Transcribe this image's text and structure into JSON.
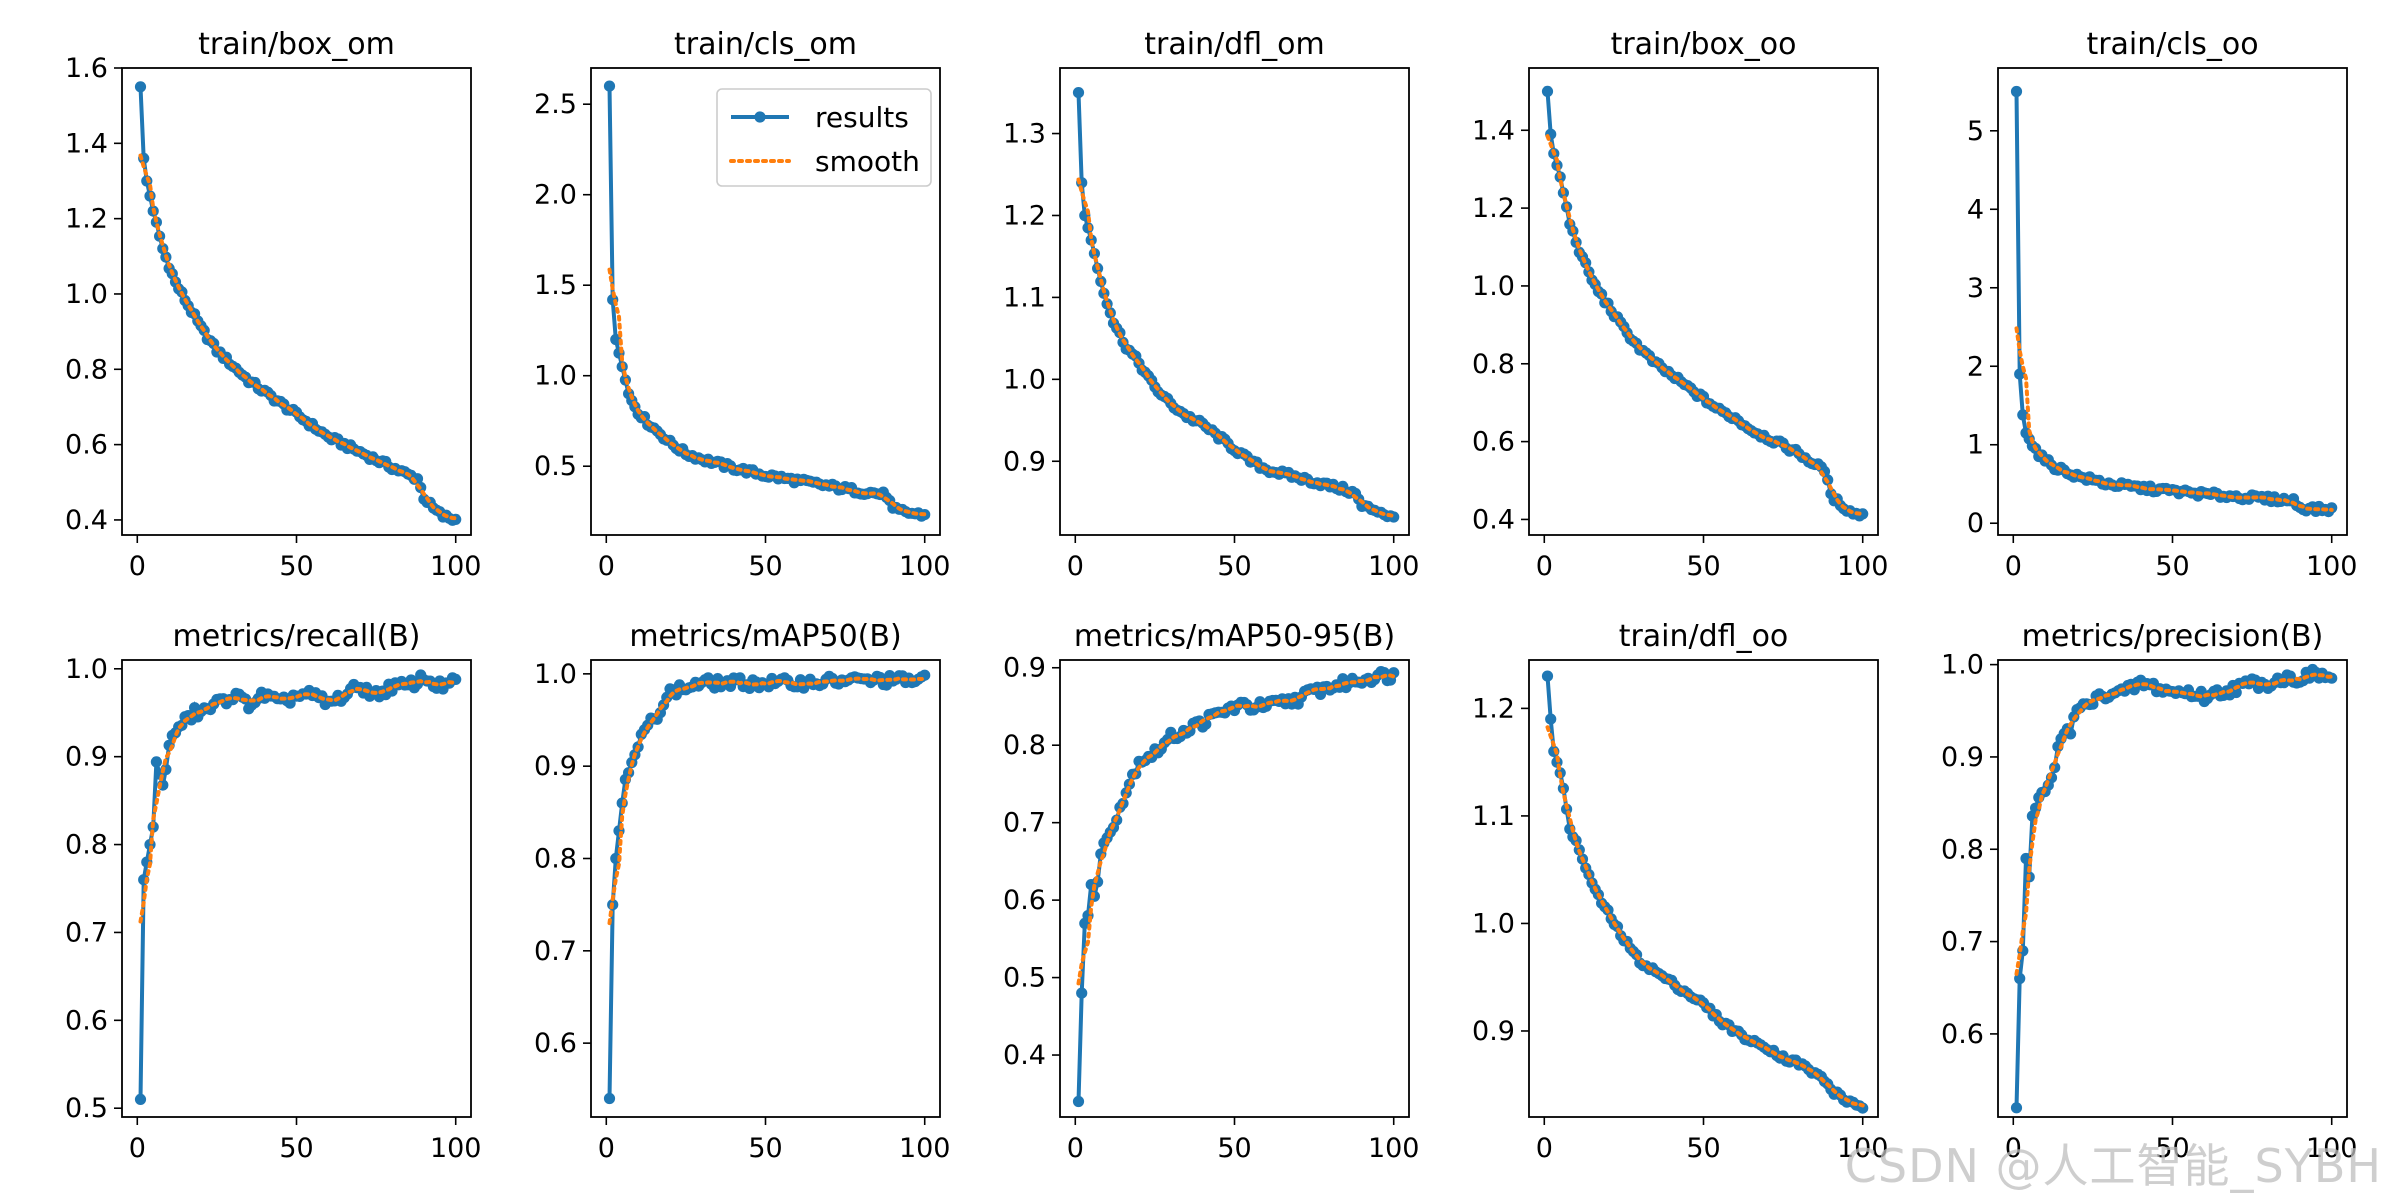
{
  "figure": {
    "watermark": "CSDN @人工智能_SYBH",
    "legend": {
      "results_label": "results",
      "smooth_label": "smooth"
    },
    "colors": {
      "results": "#1f77b4",
      "smooth": "#ff7f0e"
    }
  },
  "chart_data": [
    {
      "type": "line",
      "title": "train/box_om",
      "xlim": [
        0,
        100
      ],
      "ylim": [
        0.36,
        1.6
      ],
      "xticks": [
        0,
        50,
        100
      ],
      "yticks": [
        0.4,
        0.6,
        0.8,
        1.0,
        1.2,
        1.4,
        1.6
      ],
      "ytick_labels": [
        "0.4",
        "0.6",
        "0.8",
        "1.0",
        "1.2",
        "1.4",
        "1.6"
      ],
      "decay": "monotonic",
      "x": [
        1,
        2,
        3,
        5,
        8,
        12,
        16,
        20,
        25,
        30,
        35,
        40,
        45,
        50,
        55,
        60,
        65,
        70,
        75,
        80,
        85,
        88,
        90,
        93,
        96,
        100
      ],
      "results": [
        1.55,
        1.36,
        1.3,
        1.22,
        1.12,
        1.03,
        0.97,
        0.91,
        0.85,
        0.81,
        0.77,
        0.74,
        0.71,
        0.68,
        0.65,
        0.62,
        0.6,
        0.58,
        0.56,
        0.54,
        0.52,
        0.51,
        0.46,
        0.43,
        0.41,
        0.4
      ]
    },
    {
      "type": "line",
      "title": "train/cls_om",
      "xlim": [
        0,
        100
      ],
      "ylim": [
        0.12,
        2.7
      ],
      "xticks": [
        0,
        50,
        100
      ],
      "yticks": [
        0.5,
        1.0,
        1.5,
        2.0,
        2.5
      ],
      "ytick_labels": [
        "0.5",
        "1.0",
        "1.5",
        "2.0",
        "2.5"
      ],
      "decay": "monotonic",
      "legend": "top-right",
      "x": [
        1,
        2,
        3,
        5,
        7,
        10,
        13,
        17,
        20,
        25,
        30,
        40,
        50,
        60,
        70,
        80,
        85,
        88,
        90,
        93,
        96,
        100
      ],
      "results": [
        2.6,
        1.42,
        1.2,
        1.05,
        0.9,
        0.8,
        0.74,
        0.68,
        0.63,
        0.57,
        0.54,
        0.49,
        0.45,
        0.42,
        0.39,
        0.36,
        0.35,
        0.34,
        0.26,
        0.25,
        0.24,
        0.23
      ]
    },
    {
      "type": "line",
      "title": "train/dfl_om",
      "xlim": [
        0,
        100
      ],
      "ylim": [
        0.81,
        1.38
      ],
      "xticks": [
        0,
        50,
        100
      ],
      "yticks": [
        0.9,
        1.0,
        1.1,
        1.2,
        1.3
      ],
      "ytick_labels": [
        "0.9",
        "1.0",
        "1.1",
        "1.2",
        "1.3"
      ],
      "decay": "monotonic",
      "x": [
        1,
        2,
        3,
        5,
        8,
        12,
        16,
        20,
        25,
        30,
        35,
        40,
        45,
        50,
        55,
        60,
        65,
        70,
        75,
        80,
        85,
        88,
        90,
        95,
        100
      ],
      "results": [
        1.35,
        1.24,
        1.2,
        1.17,
        1.12,
        1.07,
        1.04,
        1.02,
        0.99,
        0.97,
        0.955,
        0.945,
        0.93,
        0.915,
        0.9,
        0.89,
        0.885,
        0.88,
        0.875,
        0.87,
        0.865,
        0.86,
        0.845,
        0.84,
        0.83
      ]
    },
    {
      "type": "line",
      "title": "train/box_oo",
      "xlim": [
        0,
        100
      ],
      "ylim": [
        0.36,
        1.56
      ],
      "xticks": [
        0,
        50,
        100
      ],
      "yticks": [
        0.4,
        0.6,
        0.8,
        1.0,
        1.2,
        1.4
      ],
      "ytick_labels": [
        "0.4",
        "0.6",
        "0.8",
        "1.0",
        "1.2",
        "1.4"
      ],
      "decay": "monotonic",
      "x": [
        1,
        2,
        3,
        5,
        8,
        12,
        16,
        20,
        25,
        30,
        35,
        40,
        45,
        50,
        55,
        60,
        65,
        70,
        75,
        80,
        85,
        88,
        90,
        93,
        96,
        100
      ],
      "results": [
        1.5,
        1.39,
        1.34,
        1.28,
        1.16,
        1.07,
        1.0,
        0.95,
        0.89,
        0.84,
        0.8,
        0.77,
        0.74,
        0.71,
        0.68,
        0.66,
        0.63,
        0.61,
        0.59,
        0.57,
        0.54,
        0.53,
        0.46,
        0.44,
        0.42,
        0.41
      ]
    },
    {
      "type": "line",
      "title": "train/cls_oo",
      "xlim": [
        0,
        100
      ],
      "ylim": [
        -0.15,
        5.8
      ],
      "xticks": [
        0,
        50,
        100
      ],
      "yticks": [
        0,
        1,
        2,
        3,
        4,
        5
      ],
      "ytick_labels": [
        "0",
        "1",
        "2",
        "3",
        "4",
        "5"
      ],
      "decay": "monotonic",
      "x": [
        1,
        2,
        3,
        4,
        6,
        8,
        10,
        13,
        17,
        20,
        25,
        30,
        40,
        50,
        60,
        70,
        80,
        85,
        88,
        90,
        95,
        100
      ],
      "results": [
        5.5,
        1.9,
        1.38,
        1.15,
        1.0,
        0.88,
        0.8,
        0.72,
        0.65,
        0.6,
        0.55,
        0.5,
        0.45,
        0.41,
        0.37,
        0.34,
        0.31,
        0.3,
        0.29,
        0.2,
        0.18,
        0.17
      ]
    },
    {
      "type": "line",
      "title": "metrics/recall(B)",
      "xlim": [
        0,
        100
      ],
      "ylim": [
        0.49,
        1.01
      ],
      "xticks": [
        0,
        50,
        100
      ],
      "yticks": [
        0.5,
        0.6,
        0.7,
        0.8,
        0.9,
        1.0
      ],
      "ytick_labels": [
        "0.5",
        "0.6",
        "0.7",
        "0.8",
        "0.9",
        "1.0"
      ],
      "decay": "rise",
      "x": [
        1,
        2,
        3,
        4,
        5,
        6,
        8,
        10,
        12,
        15,
        18,
        20,
        25,
        30,
        35,
        40,
        45,
        50,
        55,
        60,
        65,
        70,
        75,
        80,
        85,
        90,
        95,
        100
      ],
      "results": [
        0.51,
        0.76,
        0.78,
        0.8,
        0.82,
        0.89,
        0.87,
        0.91,
        0.93,
        0.94,
        0.95,
        0.95,
        0.96,
        0.97,
        0.96,
        0.97,
        0.96,
        0.97,
        0.97,
        0.96,
        0.97,
        0.98,
        0.97,
        0.98,
        0.98,
        0.99,
        0.98,
        0.985
      ]
    },
    {
      "type": "line",
      "title": "metrics/mAP50(B)",
      "xlim": [
        0,
        100
      ],
      "ylim": [
        0.52,
        1.015
      ],
      "xticks": [
        0,
        50,
        100
      ],
      "yticks": [
        0.6,
        0.7,
        0.8,
        0.9,
        1.0
      ],
      "ytick_labels": [
        "0.6",
        "0.7",
        "0.8",
        "0.9",
        "1.0"
      ],
      "decay": "rise",
      "x": [
        1,
        2,
        3,
        4,
        5,
        6,
        8,
        10,
        12,
        15,
        18,
        20,
        25,
        30,
        40,
        50,
        60,
        70,
        80,
        90,
        100
      ],
      "results": [
        0.54,
        0.75,
        0.8,
        0.83,
        0.86,
        0.89,
        0.9,
        0.92,
        0.94,
        0.95,
        0.97,
        0.98,
        0.985,
        0.99,
        0.99,
        0.99,
        0.99,
        0.992,
        0.993,
        0.993,
        0.993
      ]
    },
    {
      "type": "line",
      "title": "metrics/mAP50-95(B)",
      "xlim": [
        0,
        100
      ],
      "ylim": [
        0.32,
        0.91
      ],
      "xticks": [
        0,
        50,
        100
      ],
      "yticks": [
        0.4,
        0.5,
        0.6,
        0.7,
        0.8,
        0.9
      ],
      "ytick_labels": [
        "0.4",
        "0.5",
        "0.6",
        "0.7",
        "0.8",
        "0.9"
      ],
      "decay": "rise",
      "x": [
        1,
        2,
        3,
        4,
        5,
        6,
        8,
        10,
        12,
        15,
        18,
        20,
        25,
        30,
        35,
        40,
        45,
        50,
        55,
        60,
        65,
        70,
        75,
        80,
        85,
        90,
        95,
        100
      ],
      "results": [
        0.34,
        0.48,
        0.57,
        0.58,
        0.62,
        0.6,
        0.66,
        0.68,
        0.7,
        0.73,
        0.76,
        0.78,
        0.79,
        0.81,
        0.82,
        0.83,
        0.84,
        0.85,
        0.85,
        0.85,
        0.855,
        0.86,
        0.87,
        0.875,
        0.88,
        0.885,
        0.89,
        0.89
      ]
    },
    {
      "type": "line",
      "title": "train/dfl_oo",
      "xlim": [
        0,
        100
      ],
      "ylim": [
        0.82,
        1.245
      ],
      "xticks": [
        0,
        50,
        100
      ],
      "yticks": [
        0.9,
        1.0,
        1.1,
        1.2
      ],
      "ytick_labels": [
        "0.9",
        "1.0",
        "1.1",
        "1.2"
      ],
      "decay": "monotonic",
      "x": [
        1,
        2,
        3,
        5,
        8,
        12,
        16,
        20,
        25,
        30,
        35,
        40,
        45,
        50,
        55,
        60,
        65,
        70,
        75,
        80,
        85,
        88,
        90,
        95,
        100
      ],
      "results": [
        1.23,
        1.19,
        1.16,
        1.14,
        1.09,
        1.06,
        1.03,
        1.01,
        0.985,
        0.965,
        0.955,
        0.945,
        0.935,
        0.925,
        0.91,
        0.9,
        0.89,
        0.885,
        0.875,
        0.87,
        0.86,
        0.855,
        0.845,
        0.835,
        0.83
      ]
    },
    {
      "type": "line",
      "title": "metrics/precision(B)",
      "xlim": [
        0,
        100
      ],
      "ylim": [
        0.51,
        1.005
      ],
      "xticks": [
        0,
        50,
        100
      ],
      "yticks": [
        0.6,
        0.7,
        0.8,
        0.9,
        1.0
      ],
      "ytick_labels": [
        "0.6",
        "0.7",
        "0.8",
        "0.9",
        "1.0"
      ],
      "decay": "rise",
      "x": [
        1,
        2,
        3,
        4,
        5,
        6,
        8,
        10,
        12,
        15,
        18,
        20,
        25,
        30,
        35,
        40,
        45,
        50,
        55,
        60,
        65,
        70,
        75,
        80,
        85,
        90,
        95,
        100
      ],
      "results": [
        0.52,
        0.66,
        0.69,
        0.79,
        0.77,
        0.83,
        0.86,
        0.86,
        0.88,
        0.92,
        0.93,
        0.95,
        0.96,
        0.97,
        0.97,
        0.98,
        0.975,
        0.97,
        0.97,
        0.965,
        0.97,
        0.975,
        0.98,
        0.98,
        0.985,
        0.985,
        0.99,
        0.985
      ]
    }
  ]
}
